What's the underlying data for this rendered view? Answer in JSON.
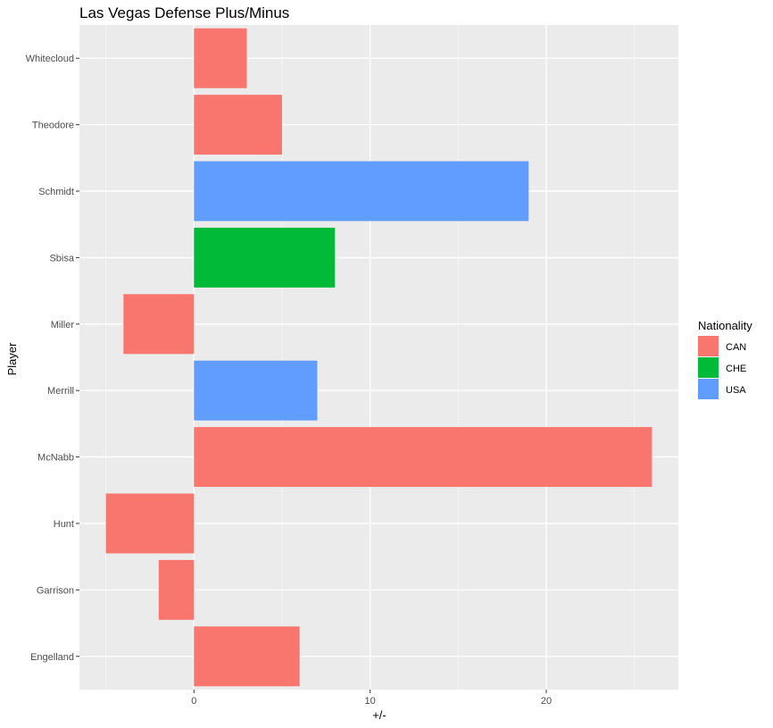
{
  "chart_data": {
    "type": "bar",
    "orientation": "horizontal",
    "title": "Las Vegas Defense Plus/Minus",
    "xlabel": "+/-",
    "ylabel": "Player",
    "xlim": [
      -6.5,
      27.5
    ],
    "x_ticks": [
      0,
      10,
      20
    ],
    "grid": true,
    "legend": {
      "title": "Nationality",
      "placement": "right",
      "entries": [
        {
          "label": "CAN",
          "color": "#F8766D"
        },
        {
          "label": "CHE",
          "color": "#00BA38"
        },
        {
          "label": "USA",
          "color": "#619CFF"
        }
      ]
    },
    "categories": [
      "Engelland",
      "Garrison",
      "Hunt",
      "McNabb",
      "Merrill",
      "Miller",
      "Sbisa",
      "Schmidt",
      "Theodore",
      "Whitecloud"
    ],
    "values": [
      6,
      -2,
      -5,
      26,
      7,
      -4,
      8,
      19,
      5,
      3
    ],
    "nationality": [
      "CAN",
      "CAN",
      "CAN",
      "CAN",
      "USA",
      "CAN",
      "CHE",
      "USA",
      "CAN",
      "CAN"
    ]
  }
}
